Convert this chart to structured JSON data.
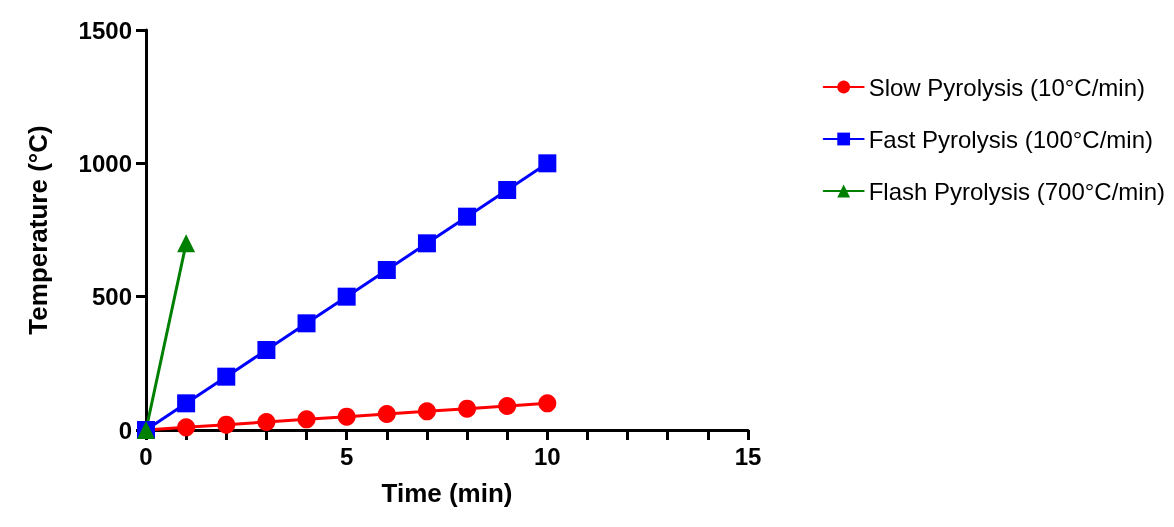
{
  "chart_data": {
    "type": "line",
    "xlabel": "Time (min)",
    "ylabel": "Temperature (°C)",
    "xlim": [
      0,
      15
    ],
    "xticks": [
      0,
      {
        "value": 1,
        "label": null
      },
      {
        "value": 2,
        "label": null
      },
      {
        "value": 3,
        "label": null
      },
      {
        "value": 4,
        "label": null
      },
      5,
      {
        "value": 6,
        "label": null
      },
      {
        "value": 7,
        "label": null
      },
      {
        "value": 8,
        "label": null
      },
      {
        "value": 9,
        "label": null
      },
      10,
      {
        "value": 11,
        "label": null
      },
      {
        "value": 12,
        "label": null
      },
      {
        "value": 13,
        "label": null
      },
      {
        "value": 14,
        "label": null
      },
      15
    ],
    "ylim": [
      0,
      1500
    ],
    "yticks": [
      0,
      500,
      1000,
      1500
    ],
    "grid": false,
    "legend": "right",
    "line_style": "solid",
    "series": [
      {
        "name": "Slow Pyrolysis (10°C/min)",
        "color": "#ff0000",
        "marker": "circle",
        "x": [
          0,
          1,
          2,
          3,
          4,
          5,
          6,
          7,
          8,
          9,
          10
        ],
        "values": [
          0,
          10,
          20,
          30,
          40,
          50,
          60,
          70,
          80,
          90,
          100
        ]
      },
      {
        "name": "Fast Pyrolysis (100°C/min)",
        "color": "#0000ff",
        "marker": "square",
        "x": [
          0,
          1,
          2,
          3,
          4,
          5,
          6,
          7,
          8,
          9,
          10
        ],
        "values": [
          0,
          100,
          200,
          300,
          400,
          500,
          600,
          700,
          800,
          900,
          1000
        ]
      },
      {
        "name": "Flash Pyrolysis (700°C/min)",
        "color": "#008000",
        "marker": "triangle",
        "x": [
          0,
          1
        ],
        "values": [
          0,
          700
        ]
      }
    ]
  }
}
